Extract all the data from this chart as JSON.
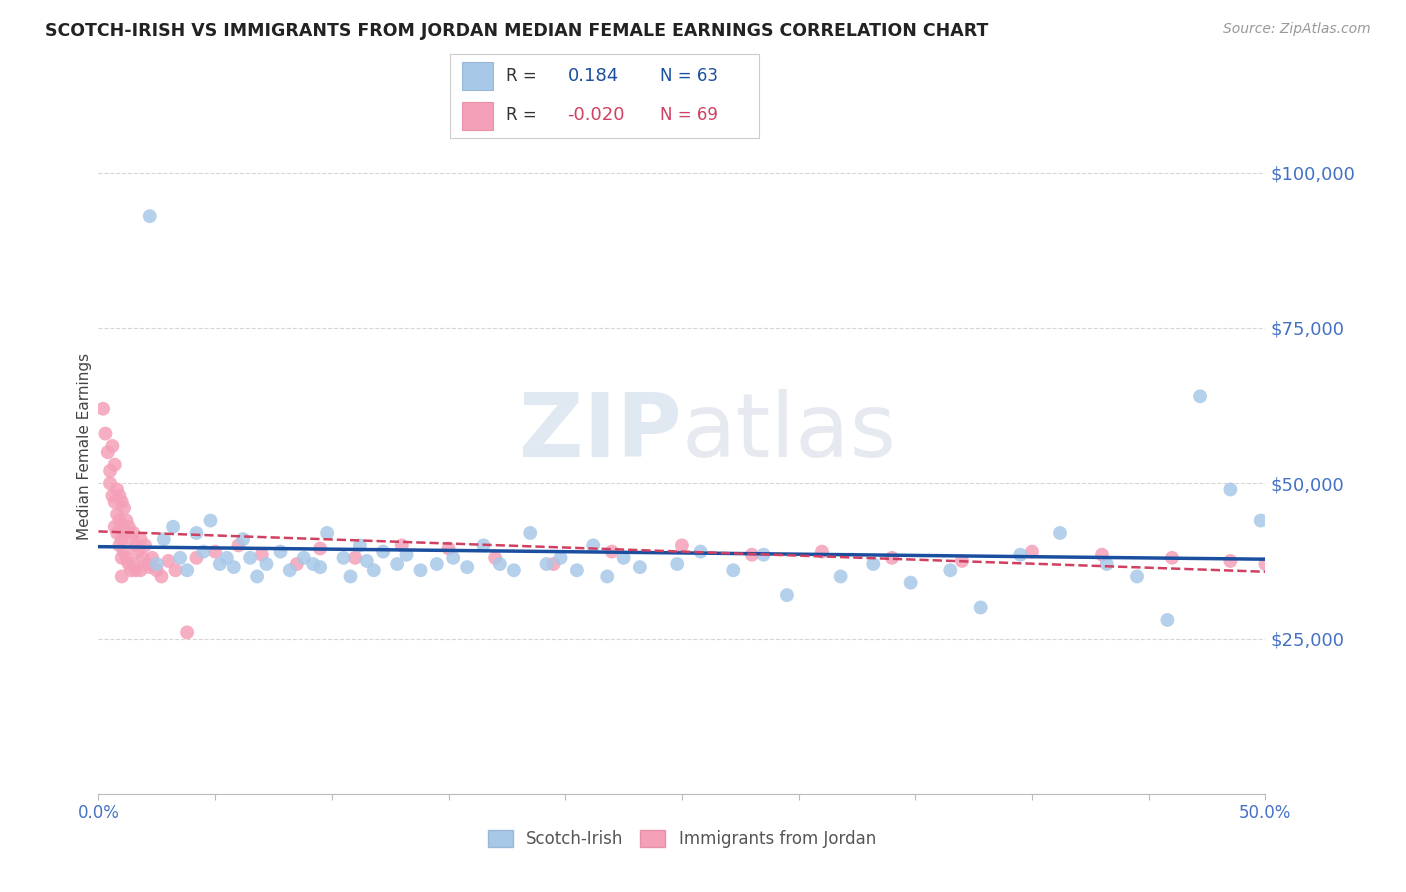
{
  "title": "SCOTCH-IRISH VS IMMIGRANTS FROM JORDAN MEDIAN FEMALE EARNINGS CORRELATION CHART",
  "source": "Source: ZipAtlas.com",
  "ylabel": "Median Female Earnings",
  "xlim": [
    0.0,
    0.5
  ],
  "ylim": [
    0,
    112000
  ],
  "yticks": [
    0,
    25000,
    50000,
    75000,
    100000
  ],
  "ytick_labels": [
    "",
    "$25,000",
    "$50,000",
    "$75,000",
    "$100,000"
  ],
  "xticks": [
    0.0,
    0.05,
    0.1,
    0.15,
    0.2,
    0.25,
    0.3,
    0.35,
    0.4,
    0.45,
    0.5
  ],
  "xtick_labels": [
    "0.0%",
    "",
    "",
    "",
    "",
    "",
    "",
    "",
    "",
    "",
    "50.0%"
  ],
  "series1_label": "Scotch-Irish",
  "series2_label": "Immigrants from Jordan",
  "series1_color": "#a8c8e8",
  "series2_color": "#f4a0b8",
  "series1_line_color": "#1a4fa0",
  "series2_line_color": "#d04060",
  "title_color": "#222222",
  "axis_label_color": "#444444",
  "tick_color": "#4472c4",
  "grid_color": "#cccccc",
  "scotch_irish_x": [
    0.022,
    0.025,
    0.028,
    0.032,
    0.035,
    0.038,
    0.042,
    0.045,
    0.048,
    0.052,
    0.055,
    0.058,
    0.062,
    0.065,
    0.068,
    0.072,
    0.078,
    0.082,
    0.088,
    0.092,
    0.095,
    0.098,
    0.105,
    0.108,
    0.112,
    0.115,
    0.118,
    0.122,
    0.128,
    0.132,
    0.138,
    0.145,
    0.152,
    0.158,
    0.165,
    0.172,
    0.178,
    0.185,
    0.192,
    0.198,
    0.205,
    0.212,
    0.218,
    0.225,
    0.232,
    0.248,
    0.258,
    0.272,
    0.285,
    0.295,
    0.318,
    0.332,
    0.348,
    0.365,
    0.378,
    0.395,
    0.412,
    0.432,
    0.445,
    0.458,
    0.472,
    0.485,
    0.498
  ],
  "scotch_irish_y": [
    93000,
    37000,
    41000,
    43000,
    38000,
    36000,
    42000,
    39000,
    44000,
    37000,
    38000,
    36500,
    41000,
    38000,
    35000,
    37000,
    39000,
    36000,
    38000,
    37000,
    36500,
    42000,
    38000,
    35000,
    40000,
    37500,
    36000,
    39000,
    37000,
    38500,
    36000,
    37000,
    38000,
    36500,
    40000,
    37000,
    36000,
    42000,
    37000,
    38000,
    36000,
    40000,
    35000,
    38000,
    36500,
    37000,
    39000,
    36000,
    38500,
    32000,
    35000,
    37000,
    34000,
    36000,
    30000,
    38500,
    42000,
    37000,
    35000,
    28000,
    64000,
    49000,
    44000
  ],
  "jordan_x": [
    0.002,
    0.003,
    0.004,
    0.005,
    0.005,
    0.006,
    0.006,
    0.007,
    0.007,
    0.007,
    0.008,
    0.008,
    0.008,
    0.009,
    0.009,
    0.009,
    0.01,
    0.01,
    0.01,
    0.01,
    0.01,
    0.011,
    0.011,
    0.011,
    0.012,
    0.012,
    0.013,
    0.013,
    0.014,
    0.014,
    0.015,
    0.015,
    0.016,
    0.016,
    0.017,
    0.018,
    0.018,
    0.019,
    0.02,
    0.021,
    0.022,
    0.023,
    0.025,
    0.027,
    0.03,
    0.033,
    0.038,
    0.042,
    0.05,
    0.06,
    0.07,
    0.085,
    0.095,
    0.11,
    0.13,
    0.15,
    0.17,
    0.195,
    0.22,
    0.25,
    0.28,
    0.31,
    0.34,
    0.37,
    0.4,
    0.43,
    0.46,
    0.485,
    0.5
  ],
  "jordan_y": [
    62000,
    58000,
    55000,
    52000,
    50000,
    56000,
    48000,
    53000,
    47000,
    43000,
    49000,
    45000,
    42000,
    48000,
    44000,
    40000,
    47000,
    43000,
    41000,
    38000,
    35000,
    46000,
    42000,
    39000,
    44000,
    38000,
    43000,
    37000,
    41000,
    36000,
    42000,
    37000,
    40000,
    36000,
    39000,
    41000,
    36000,
    38000,
    40000,
    37000,
    36500,
    38000,
    36000,
    35000,
    37500,
    36000,
    26000,
    38000,
    39000,
    40000,
    38500,
    37000,
    39500,
    38000,
    40000,
    39500,
    38000,
    37000,
    39000,
    40000,
    38500,
    39000,
    38000,
    37500,
    39000,
    38500,
    38000,
    37500,
    37000
  ]
}
